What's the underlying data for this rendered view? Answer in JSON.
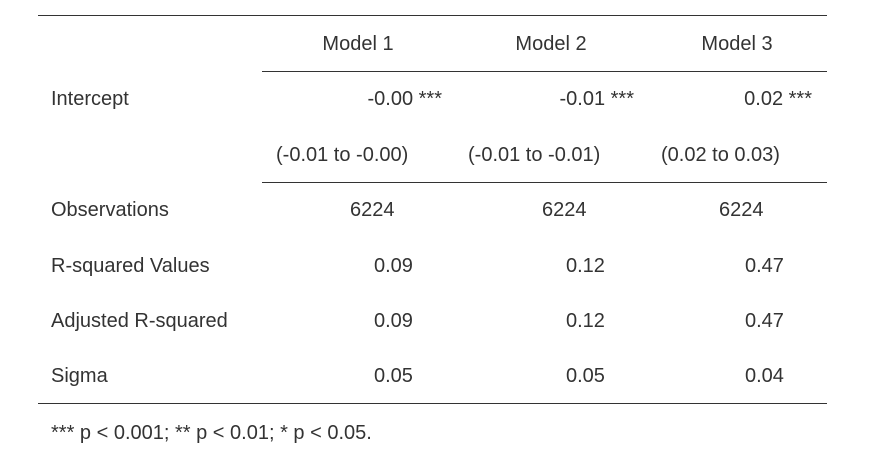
{
  "table": {
    "columns": [
      "Model 1",
      "Model 2",
      "Model 3"
    ],
    "intercept": {
      "label": "Intercept",
      "coefficients": [
        "-0.00 ***",
        "-0.01 ***",
        "0.02 ***"
      ],
      "intervals": [
        "(-0.01 to -0.00)",
        "(-0.01 to -0.01)",
        "(0.02 to 0.03)"
      ]
    },
    "stats": [
      {
        "label": "Observations",
        "values": [
          "6224",
          "6224",
          "6224"
        ]
      },
      {
        "label": "R-squared Values",
        "values": [
          "0.09",
          "0.12",
          "0.47"
        ]
      },
      {
        "label": "Adjusted R-squared",
        "values": [
          "0.09",
          "0.12",
          "0.47"
        ]
      },
      {
        "label": "Sigma",
        "values": [
          "0.05",
          "0.05",
          "0.04"
        ]
      }
    ],
    "note": "*** p < 0.001; ** p < 0.01; * p < 0.05."
  }
}
